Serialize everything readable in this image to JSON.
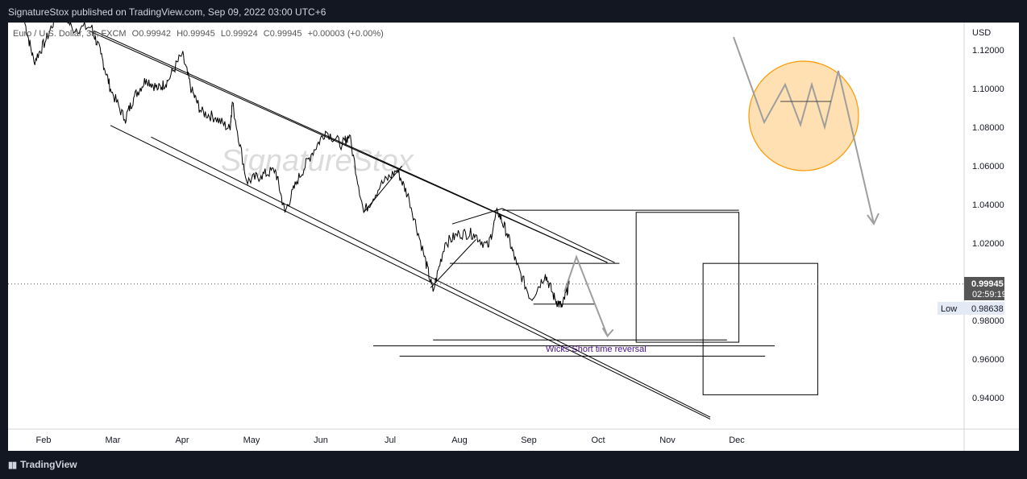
{
  "header": {
    "publisher_line": "SignatureStox published on TradingView.com, Sep 09, 2022 03:00 UTC+6"
  },
  "legend": {
    "symbol": "Euro / U.S. Dollar, 3h, FXCM",
    "open": "O0.99942",
    "high": "H0.99945",
    "low": "L0.99924",
    "close": "C0.99945",
    "change": "+0.00003 (+0.00%)"
  },
  "watermark": "SignatureStox",
  "annotation": "Wicks Short time reversal",
  "price_tag": {
    "price": "0.99945",
    "countdown": "02:59:19"
  },
  "low_tag": {
    "label": "Low",
    "price": "0.98638"
  },
  "footer": {
    "brand": "TradingView"
  },
  "colors": {
    "background": "#131722",
    "pane": "#ffffff",
    "price_line": "#000000",
    "circle_fill": "#ffe0b2",
    "circle_stroke": "#ff9800",
    "annotation_text": "#4a148c",
    "arrow": "#9e9e9e"
  },
  "chart_data": {
    "type": "line",
    "currency": "USD",
    "x_tick_labels": [
      "Feb",
      "Mar",
      "Apr",
      "May",
      "Jun",
      "Jul",
      "Aug",
      "Sep",
      "Oct",
      "Nov",
      "Dec"
    ],
    "y_tick_labels": [
      "1.12000",
      "1.10000",
      "1.08000",
      "1.06000",
      "1.04000",
      "1.02000",
      "1.00000",
      "0.98000",
      "0.96000",
      "0.94000"
    ],
    "ylim": [
      0.928,
      1.128
    ],
    "series": [
      {
        "values": [
          [
            "2022-01-24",
            1.135
          ],
          [
            "2022-01-28",
            1.114
          ],
          [
            "2022-02-02",
            1.125
          ],
          [
            "2022-02-08",
            1.143
          ],
          [
            "2022-02-13",
            1.131
          ],
          [
            "2022-02-21",
            1.132
          ],
          [
            "2022-02-25",
            1.118
          ],
          [
            "2022-03-01",
            1.1
          ],
          [
            "2022-03-07",
            1.084
          ],
          [
            "2022-03-11",
            1.096
          ],
          [
            "2022-03-16",
            1.105
          ],
          [
            "2022-03-21",
            1.1
          ],
          [
            "2022-03-25",
            1.104
          ],
          [
            "2022-03-31",
            1.118
          ],
          [
            "2022-04-04",
            1.099
          ],
          [
            "2022-04-08",
            1.088
          ],
          [
            "2022-04-14",
            1.085
          ],
          [
            "2022-04-20",
            1.079
          ],
          [
            "2022-04-21",
            1.093
          ],
          [
            "2022-04-27",
            1.052
          ],
          [
            "2022-05-03",
            1.055
          ],
          [
            "2022-05-09",
            1.058
          ],
          [
            "2022-05-13",
            1.036
          ],
          [
            "2022-05-18",
            1.052
          ],
          [
            "2022-05-24",
            1.066
          ],
          [
            "2022-05-30",
            1.078
          ],
          [
            "2022-06-06",
            1.071
          ],
          [
            "2022-06-09",
            1.076
          ],
          [
            "2022-06-15",
            1.036
          ],
          [
            "2022-06-22",
            1.05
          ],
          [
            "2022-06-29",
            1.058
          ],
          [
            "2022-07-04",
            1.043
          ],
          [
            "2022-07-10",
            1.015
          ],
          [
            "2022-07-14",
            0.995
          ],
          [
            "2022-07-19",
            1.02
          ],
          [
            "2022-07-25",
            1.025
          ],
          [
            "2022-07-31",
            1.025
          ],
          [
            "2022-08-06",
            1.018
          ],
          [
            "2022-08-10",
            1.037
          ],
          [
            "2022-08-14",
            1.025
          ],
          [
            "2022-08-18",
            1.009
          ],
          [
            "2022-08-24",
            0.991
          ],
          [
            "2022-08-30",
            1.004
          ],
          [
            "2022-09-03",
            0.991
          ],
          [
            "2022-09-06",
            0.987
          ],
          [
            "2022-09-09",
            0.9995
          ]
        ]
      }
    ],
    "drawings": {
      "channel_upper_1": [
        [
          "2022-02-20",
          1.13
        ],
        [
          "2022-09-25",
          1.01
        ]
      ],
      "channel_upper_2": [
        [
          "2022-02-22",
          1.13
        ],
        [
          "2022-09-25",
          1.01
        ]
      ],
      "channel_lower_1": [
        [
          "2022-03-01",
          1.081
        ],
        [
          "2022-11-07",
          0.929
        ]
      ],
      "channel_lower_2": [
        [
          "2022-03-18",
          1.075
        ],
        [
          "2022-11-07",
          0.93
        ]
      ],
      "triangle_1": [
        [
          "2022-06-15",
          1.036
        ],
        [
          "2022-07-01",
          1.06
        ]
      ],
      "triangle_2a": [
        [
          "2022-07-13",
          0.997
        ],
        [
          "2022-08-01",
          1.022
        ]
      ],
      "triangle_2b": [
        [
          "2022-07-22",
          1.03
        ],
        [
          "2022-08-12",
          1.038
        ]
      ],
      "triangle_2c": [
        [
          "2022-08-12",
          1.038
        ],
        [
          "2022-09-28",
          1.01
        ]
      ],
      "hline_1.0371": [
        [
          "2022-08-12",
          1.0371
        ],
        [
          "2022-11-19",
          1.0371
        ]
      ],
      "hline_1.0096": [
        [
          "2022-07-21",
          1.0096
        ],
        [
          "2022-09-30",
          1.0096
        ]
      ],
      "hline_0.9885": [
        [
          "2022-08-25",
          0.9885
        ],
        [
          "2022-09-20",
          0.9885
        ]
      ],
      "hline_0.9700": [
        [
          "2022-07-14",
          0.97
        ],
        [
          "2022-11-14",
          0.97
        ]
      ],
      "hline_0.9669": [
        [
          "2022-06-19",
          0.9669
        ],
        [
          "2022-12-04",
          0.9669
        ]
      ],
      "hline_0.9616": [
        [
          "2022-06-30",
          0.9616
        ],
        [
          "2022-11-30",
          0.9616
        ]
      ],
      "box_1": [
        [
          "2022-10-07",
          1.036
        ],
        [
          "2022-11-19",
          0.9688
        ]
      ],
      "box_2": [
        [
          "2022-11-04",
          1.0096
        ],
        [
          "2022-12-22",
          0.9416
        ]
      ],
      "projection_arrow": [
        [
          "2022-09-12",
          1.013
        ],
        [
          "2022-09-25",
          0.972
        ]
      ],
      "zigzag_inset": [
        [
          0.9075,
          0.082
        ],
        [
          0.9455,
          0.188
        ],
        [
          0.972,
          0.105
        ],
        [
          0.989,
          0.155
        ],
        [
          1.0055,
          0.105
        ],
        [
          1.0215,
          0.158
        ],
        [
          1.0385,
          0.088
        ],
        [
          1.085,
          0.278
        ]
      ],
      "zigzag_inset_hline": [
        [
          0.9665,
          0.1265
        ],
        [
          1.0295,
          0.1265
        ]
      ]
    }
  }
}
